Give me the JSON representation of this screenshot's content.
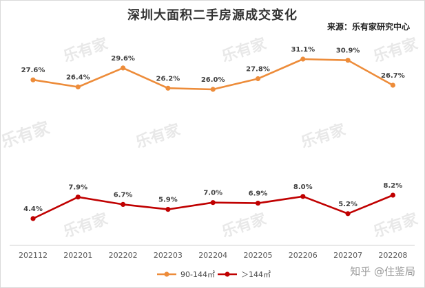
{
  "chart_data": {
    "type": "line",
    "title": "深圳大面积二手房源成交变化",
    "source": "来源：乐有家研究中心",
    "watermark_text": "知乎 @住鉴局",
    "categories": [
      "202112",
      "202201",
      "202202",
      "202203",
      "202204",
      "202205",
      "202206",
      "202207",
      "202208"
    ],
    "series": [
      {
        "name": "90-144㎡",
        "color": "#ED8C3A",
        "values": [
          27.6,
          26.4,
          29.6,
          26.2,
          26.0,
          27.8,
          31.1,
          30.9,
          26.7
        ],
        "labels": [
          "27.6%",
          "26.4%",
          "29.6%",
          "26.2%",
          "26.0%",
          "27.8%",
          "31.1%",
          "30.9%",
          "26.7%"
        ]
      },
      {
        "name": "＞144㎡",
        "color": "#C00000",
        "values": [
          4.4,
          7.9,
          6.7,
          5.9,
          7.0,
          6.9,
          8.0,
          5.2,
          8.2
        ],
        "labels": [
          "4.4%",
          "7.9%",
          "6.7%",
          "5.9%",
          "7.0%",
          "6.9%",
          "8.0%",
          "5.2%",
          "8.2%"
        ]
      }
    ],
    "legend_position": "bottom",
    "grid": false
  }
}
